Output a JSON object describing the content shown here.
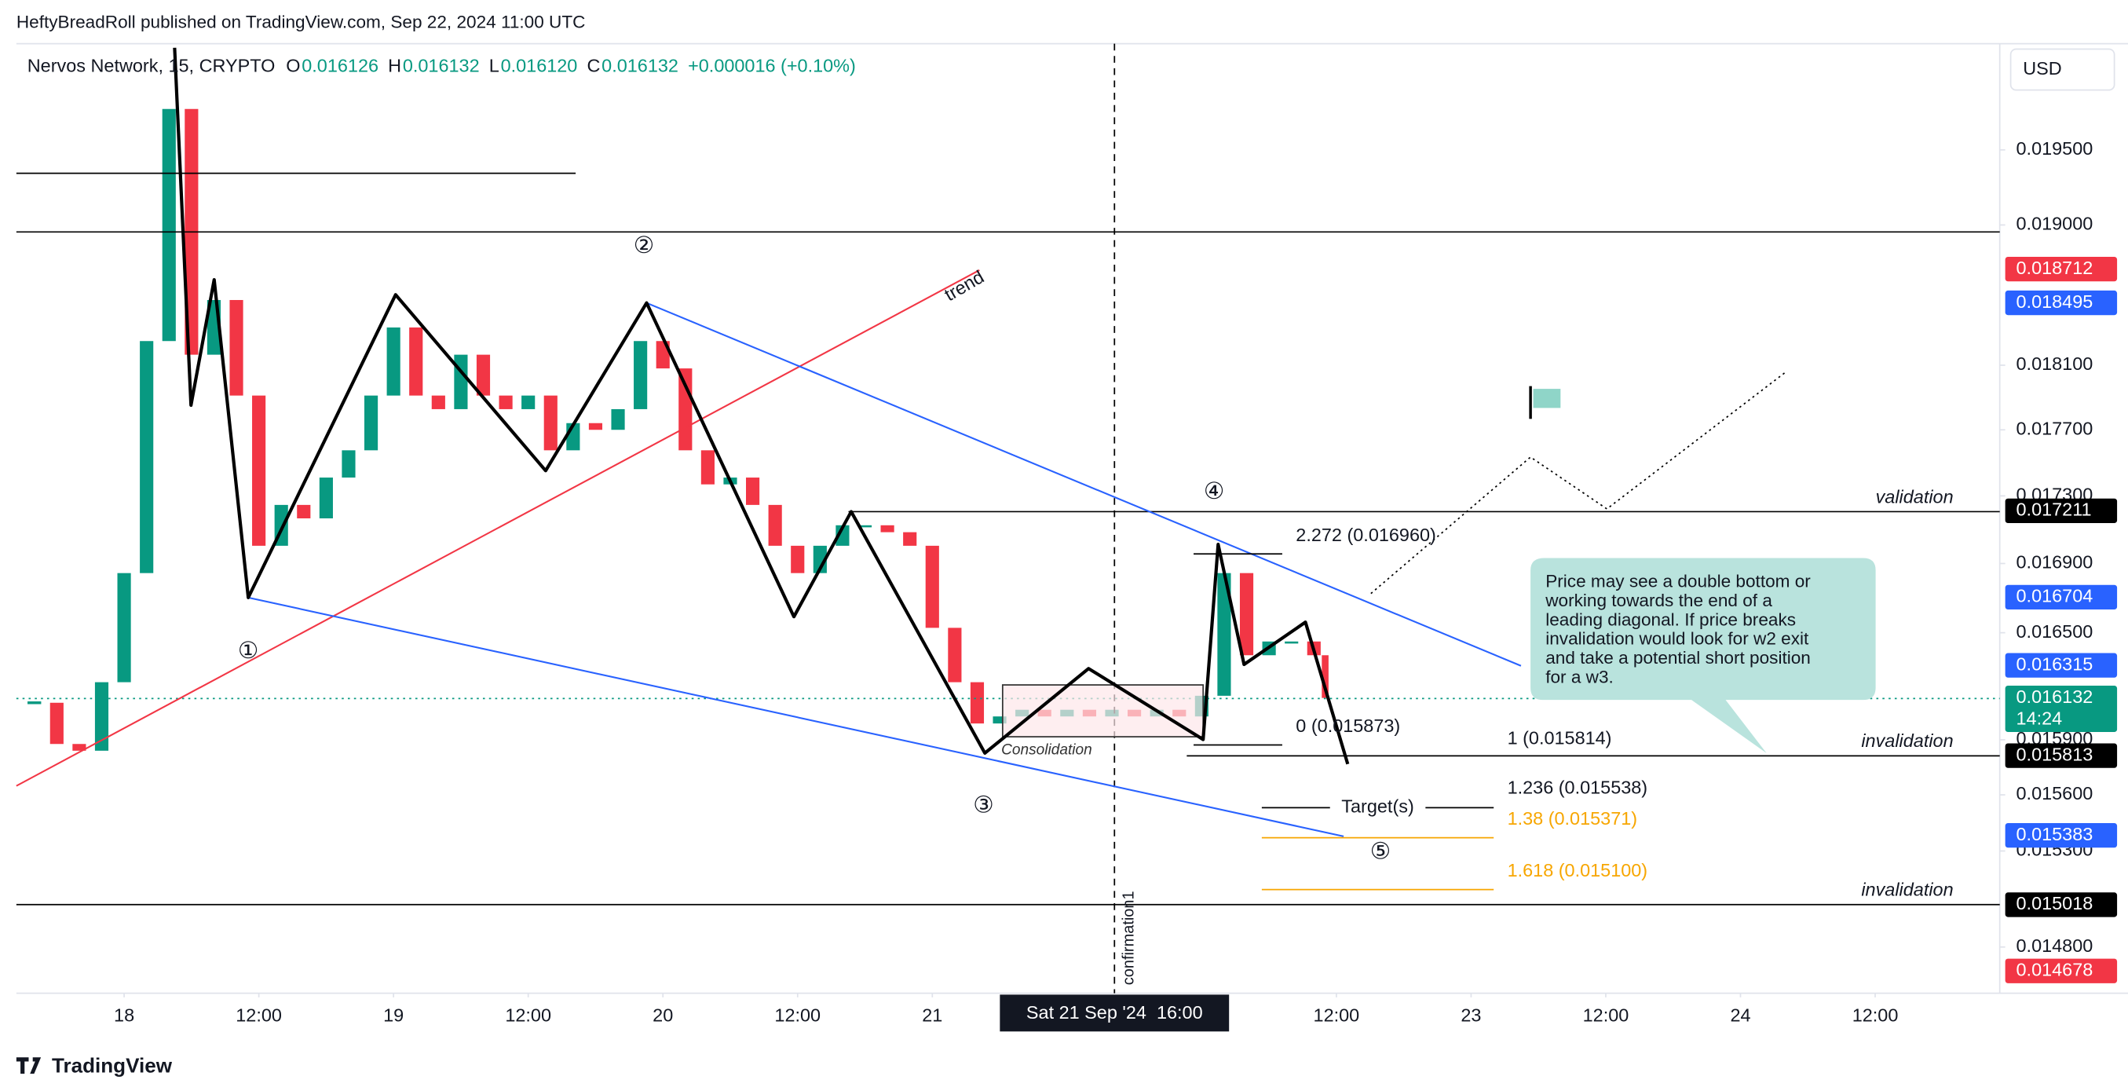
{
  "header": {
    "publisher": "HeftyBreadRoll published on TradingView.com, Sep 22, 2024 11:00 UTC",
    "symbol": "Nervos Network, 15, CRYPTO",
    "ohlc": [
      {
        "label": "O",
        "value": "0.016126"
      },
      {
        "label": "H",
        "value": "0.016132"
      },
      {
        "label": "L",
        "value": "0.016120"
      },
      {
        "label": "C",
        "value": "0.016132"
      }
    ],
    "change": "+0.000016 (+0.10%)",
    "currency": "USD"
  },
  "footer": {
    "brand": "TradingView"
  },
  "chart_data": {
    "type": "candlestick",
    "log_scale": true,
    "grid": false,
    "ylim": [
      0.014565,
      0.02023
    ],
    "yticks": [
      {
        "value": 0.0195,
        "label": "0.019500"
      },
      {
        "value": 0.019,
        "label": "0.019000"
      },
      {
        "value": 0.0181,
        "label": "0.018100"
      },
      {
        "value": 0.0177,
        "label": "0.017700"
      },
      {
        "value": 0.0173,
        "label": "0.017300"
      },
      {
        "value": 0.0169,
        "label": "0.016900"
      },
      {
        "value": 0.0165,
        "label": "0.016500"
      },
      {
        "value": 0.0159,
        "label": "0.015900"
      },
      {
        "value": 0.0156,
        "label": "0.015600"
      },
      {
        "value": 0.0153,
        "label": "0.015300"
      },
      {
        "value": 0.0148,
        "label": "0.014800"
      }
    ],
    "xlim": [
      "2024-09-17 14:24",
      "2024-09-24 23:06"
    ],
    "xticks": [
      {
        "value": "2024-09-18 00:00",
        "label": "18"
      },
      {
        "value": "2024-09-18 12:00",
        "label": "12:00"
      },
      {
        "value": "2024-09-19 00:00",
        "label": "19"
      },
      {
        "value": "2024-09-19 12:00",
        "label": "12:00"
      },
      {
        "value": "2024-09-20 00:00",
        "label": "20"
      },
      {
        "value": "2024-09-20 12:00",
        "label": "12:00"
      },
      {
        "value": "2024-09-21 00:00",
        "label": "21"
      },
      {
        "value": "2024-09-22 12:00",
        "label": "12:00"
      },
      {
        "value": "2024-09-23 00:00",
        "label": "23"
      },
      {
        "value": "2024-09-23 12:00",
        "label": "12:00"
      },
      {
        "value": "2024-09-24 00:00",
        "label": "24"
      },
      {
        "value": "2024-09-24 12:00",
        "label": "12:00"
      }
    ],
    "crosshair": "Sat 21 Sep '24  16:00",
    "up_color": "#089981",
    "down_color": "#f23645",
    "x": [
      "2024-09-17 16:00",
      "2024-09-17 18:00",
      "2024-09-17 20:00",
      "2024-09-17 22:00",
      "2024-09-18 00:00",
      "2024-09-18 02:00",
      "2024-09-18 04:00",
      "2024-09-18 06:00",
      "2024-09-18 08:00",
      "2024-09-18 10:00",
      "2024-09-18 12:00",
      "2024-09-18 14:00",
      "2024-09-18 16:00",
      "2024-09-18 18:00",
      "2024-09-18 20:00",
      "2024-09-18 22:00",
      "2024-09-19 00:00",
      "2024-09-19 02:00",
      "2024-09-19 04:00",
      "2024-09-19 06:00",
      "2024-09-19 08:00",
      "2024-09-19 10:00",
      "2024-09-19 12:00",
      "2024-09-19 14:00",
      "2024-09-19 16:00",
      "2024-09-19 18:00",
      "2024-09-19 20:00",
      "2024-09-19 22:00",
      "2024-09-20 00:00",
      "2024-09-20 02:00",
      "2024-09-20 04:00",
      "2024-09-20 06:00",
      "2024-09-20 08:00",
      "2024-09-20 10:00",
      "2024-09-20 12:00",
      "2024-09-20 14:00",
      "2024-09-20 16:00",
      "2024-09-20 18:00",
      "2024-09-20 20:00",
      "2024-09-20 22:00",
      "2024-09-21 00:00",
      "2024-09-21 02:00",
      "2024-09-21 04:00",
      "2024-09-21 06:00",
      "2024-09-21 08:00",
      "2024-09-21 10:00",
      "2024-09-21 12:00",
      "2024-09-21 14:00",
      "2024-09-21 16:00",
      "2024-09-21 18:00",
      "2024-09-21 20:00",
      "2024-09-21 22:00",
      "2024-09-22 00:00",
      "2024-09-22 02:00",
      "2024-09-22 04:00",
      "2024-09-22 06:00",
      "2024-09-22 08:00",
      "2024-09-22 10:00",
      "2024-09-22 11:00"
    ],
    "values": [
      0.016105,
      0.015877,
      0.01584,
      0.01622,
      0.016844,
      0.018252,
      0.019778,
      0.018166,
      0.018513,
      0.017911,
      0.017004,
      0.017246,
      0.017166,
      0.01741,
      0.017575,
      0.017911,
      0.018338,
      0.017911,
      0.017827,
      0.018166,
      0.017911,
      0.017827,
      0.017911,
      0.017575,
      0.017741,
      0.0177,
      0.017827,
      0.018252,
      0.01808,
      0.017575,
      0.017369,
      0.01741,
      0.017246,
      0.017004,
      0.016844,
      0.017004,
      0.017125,
      0.017125,
      0.017084,
      0.017004,
      0.016528,
      0.01622,
      0.01599,
      0.016029,
      0.016066,
      0.016029,
      0.016066,
      0.016029,
      0.016066,
      0.016029,
      0.016066,
      0.016029,
      0.016144,
      0.016844,
      0.016372,
      0.01645,
      0.01645,
      0.016372,
      0.016132
    ],
    "price_badges": [
      {
        "value": 0.018712,
        "label": "0.018712",
        "color": "#f23645"
      },
      {
        "value": 0.018495,
        "label": "0.018495",
        "color": "#2962ff"
      },
      {
        "value": 0.017211,
        "label": "0.017211",
        "color": "#000000"
      },
      {
        "value": 0.016704,
        "label": "0.016704",
        "color": "#2962ff"
      },
      {
        "value": 0.016315,
        "label": "0.016315",
        "color": "#2962ff"
      },
      {
        "value": 0.016132,
        "label": "0.016132",
        "color": "#089981",
        "countdown": "14:24"
      },
      {
        "value": 0.015813,
        "label": "0.015813",
        "color": "#000000"
      },
      {
        "value": 0.015383,
        "label": "0.015383",
        "color": "#2962ff"
      },
      {
        "value": 0.015018,
        "label": "0.015018",
        "color": "#000000"
      },
      {
        "value": 0.014678,
        "label": "0.014678",
        "color": "#f23645"
      }
    ]
  },
  "annotations": {
    "trend": "trend",
    "validation": "validation",
    "invalidation_upper": "invalidation",
    "invalidation_lower": "invalidation",
    "consolidation": "Consolidation",
    "targets": "Target(s)",
    "confirmation": "confirmation1",
    "waves": [
      "①",
      "②",
      "③",
      "④",
      "⑤"
    ],
    "fib": [
      "2.272 (0.016960)",
      "0 (0.015873)",
      "1 (0.015814)",
      "1.236 (0.015538)",
      "1.38 (0.015371)",
      "1.618 (0.015100)"
    ],
    "callout": [
      "Price may see a double bottom or",
      "working towards the end of a",
      "leading diagonal. If price breaks",
      "invalidation would look for w2 exit",
      "and take a potential short position",
      "for a w3."
    ]
  }
}
